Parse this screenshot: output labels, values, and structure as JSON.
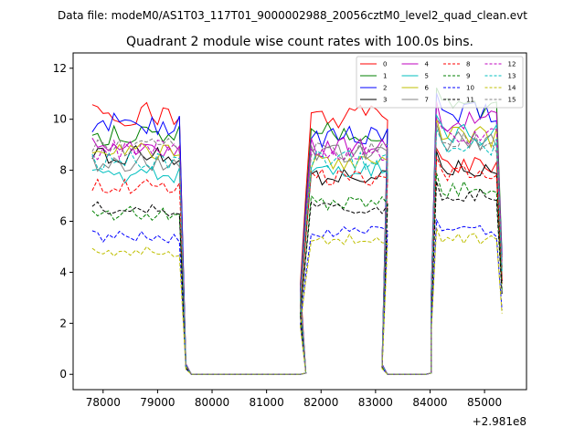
{
  "figure": {
    "suptitle": "Data file: modeM0/AS1T03_117T01_9000002988_20056cztM0_level2_quad_clean.evt"
  },
  "chart_data": {
    "type": "line",
    "title": "Quadrant 2 module wise count rates with 100.0s bins.",
    "xlabel": "",
    "ylabel": "",
    "x_offset_label": "+2.981e8",
    "xlim": [
      77450,
      85770
    ],
    "ylim": [
      -0.6,
      12.6
    ],
    "x_ticks": [
      78000,
      79000,
      80000,
      81000,
      82000,
      83000,
      84000,
      85000
    ],
    "x_tick_labels": [
      "78000",
      "79000",
      "80000",
      "81000",
      "82000",
      "83000",
      "84000",
      "85000"
    ],
    "y_ticks": [
      0,
      2,
      4,
      6,
      8,
      10,
      12
    ],
    "y_tick_labels": [
      "0",
      "2",
      "4",
      "6",
      "8",
      "10",
      "12"
    ],
    "grid": false,
    "legend_placement": "top-right",
    "legend_columns": 4,
    "segments": [
      {
        "start": 77800,
        "count": 17,
        "step": 100
      },
      {
        "start": 79520,
        "count": 23,
        "step": 100
      },
      {
        "start": 81620,
        "count": 17,
        "step": 100
      },
      {
        "start": 83120,
        "count": 10,
        "step": 100
      },
      {
        "start": 84020,
        "count": 14,
        "step": 100
      }
    ],
    "series": [
      {
        "name": "0",
        "color": "#ff0000",
        "dash": "solid",
        "levels": [
          10.2,
          10.1,
          9.1,
          8.2
        ]
      },
      {
        "name": "1",
        "color": "#008000",
        "dash": "solid",
        "levels": [
          9.4,
          9.5,
          9.0,
          10.4
        ]
      },
      {
        "name": "2",
        "color": "#0000ff",
        "dash": "solid",
        "levels": [
          9.8,
          9.3,
          10.0,
          10.2
        ]
      },
      {
        "name": "3",
        "color": "#000000",
        "dash": "solid",
        "levels": [
          8.6,
          7.7,
          8.3,
          8.1
        ]
      },
      {
        "name": "4",
        "color": "#bf00bf",
        "dash": "solid",
        "levels": [
          8.9,
          8.9,
          9.0,
          9.9
        ]
      },
      {
        "name": "5",
        "color": "#00bfbf",
        "dash": "solid",
        "levels": [
          7.8,
          8.1,
          8.0,
          9.4
        ]
      },
      {
        "name": "6",
        "color": "#bfbf00",
        "dash": "solid",
        "levels": [
          8.7,
          8.3,
          8.6,
          9.3
        ]
      },
      {
        "name": "7",
        "color": "#808080",
        "dash": "solid",
        "levels": [
          8.3,
          8.7,
          8.7,
          9.1
        ]
      },
      {
        "name": "8",
        "color": "#ff0000",
        "dash": "dashed",
        "levels": [
          7.4,
          7.7,
          8.0,
          7.9
        ]
      },
      {
        "name": "9",
        "color": "#008000",
        "dash": "dashed",
        "levels": [
          6.3,
          6.7,
          7.4,
          7.3
        ]
      },
      {
        "name": "10",
        "color": "#0000ff",
        "dash": "dashed",
        "levels": [
          5.4,
          5.6,
          5.8,
          5.6
        ]
      },
      {
        "name": "11",
        "color": "#000000",
        "dash": "dashed",
        "levels": [
          6.5,
          6.6,
          7.2,
          7.0
        ]
      },
      {
        "name": "12",
        "color": "#bf00bf",
        "dash": "dashed",
        "levels": [
          8.8,
          8.7,
          8.9,
          9.3
        ]
      },
      {
        "name": "13",
        "color": "#00bfbf",
        "dash": "dashed",
        "levels": [
          8.4,
          8.4,
          8.5,
          8.9
        ]
      },
      {
        "name": "14",
        "color": "#bfbf00",
        "dash": "dashed",
        "levels": [
          4.8,
          5.3,
          5.4,
          5.3
        ]
      },
      {
        "name": "15",
        "color": "#808080",
        "dash": "dashed",
        "levels": [
          8.9,
          8.7,
          8.9,
          9.1
        ]
      }
    ]
  }
}
